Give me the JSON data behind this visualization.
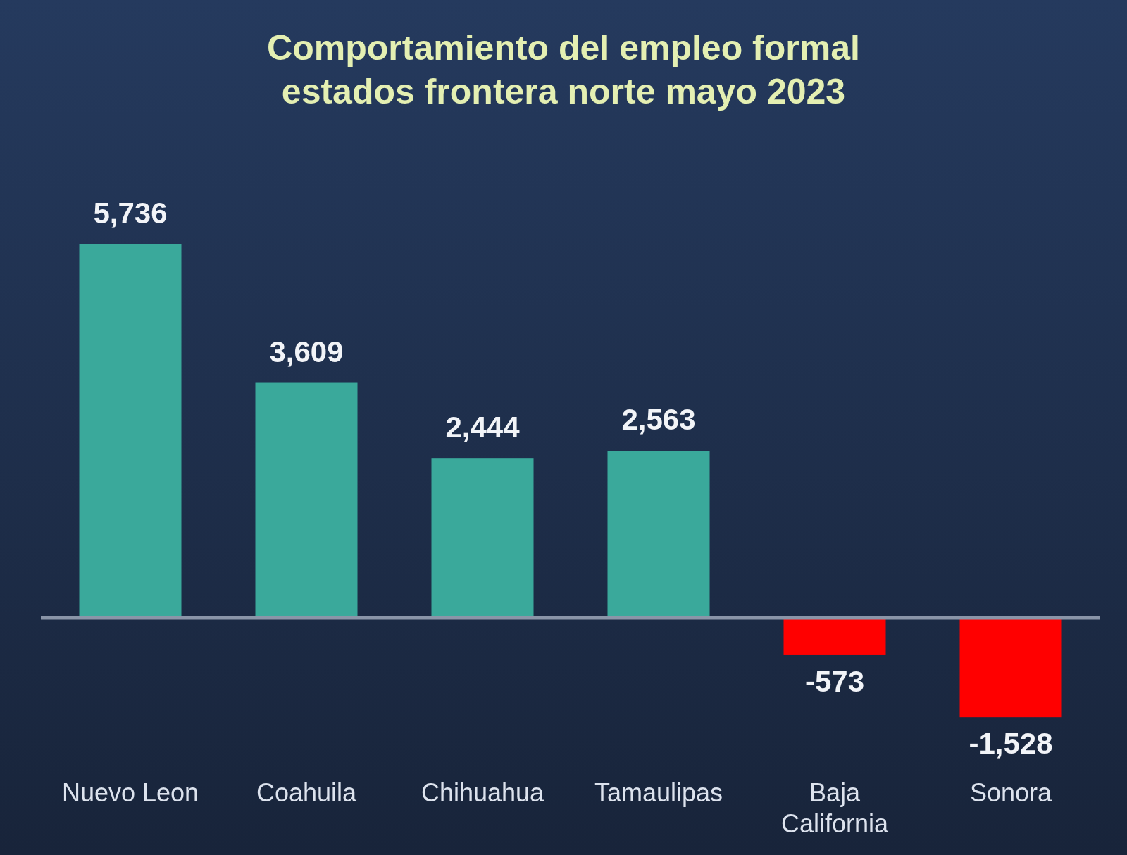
{
  "chart_data": {
    "type": "bar",
    "title": "Comportamiento del empleo formal estados frontera norte mayo 2023",
    "categories": [
      "Nuevo Leon",
      "Coahuila",
      "Chihuahua",
      "Tamaulipas",
      "Baja California",
      "Sonora"
    ],
    "values": [
      5736,
      3609,
      2444,
      2563,
      -573,
      -1528
    ],
    "colors": [
      "#3aa99b",
      "#3aa99b",
      "#3aa99b",
      "#3aa99b",
      "#ff0000",
      "#ff0000"
    ],
    "value_labels": [
      "5,736",
      "3,609",
      "2,444",
      "2,563",
      "-573",
      "-1,528"
    ]
  }
}
